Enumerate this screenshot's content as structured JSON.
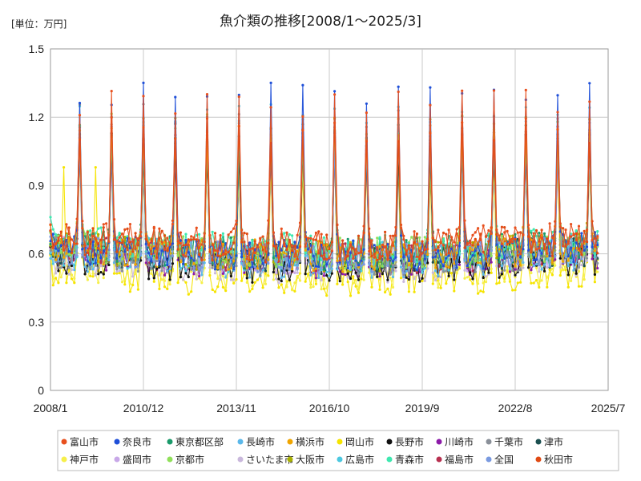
{
  "chart_data": {
    "type": "line",
    "title": "魚介類の推移[2008/1～2025/3]",
    "unit_label": "[単位：万円]",
    "xlabel": "",
    "ylabel": "",
    "ylim": [
      0,
      1.5
    ],
    "y_ticks": [
      "0",
      "0.3",
      "0.6",
      "0.9",
      "1.2",
      "1.5"
    ],
    "x_ticks": [
      "2008/1",
      "2010/12",
      "2013/11",
      "2016/10",
      "2019/9",
      "2022/8",
      "2025/7"
    ],
    "grid": true,
    "legend_placement": "bottom",
    "x_range": [
      "2008-01",
      "2025-07"
    ],
    "series": [
      {
        "name": "富山市",
        "color": "#e8501e",
        "base": 0.68,
        "peak": 1.26
      },
      {
        "name": "奈良市",
        "color": "#1f4fd8",
        "base": 0.63,
        "peak": 1.3
      },
      {
        "name": "東京都区部",
        "color": "#1a9a6a",
        "base": 0.64,
        "peak": 1.15
      },
      {
        "name": "長崎市",
        "color": "#5bb8ea",
        "base": 0.6,
        "peak": 1.13
      },
      {
        "name": "横浜市",
        "color": "#f0a500",
        "base": 0.63,
        "peak": 1.14
      },
      {
        "name": "岡山市",
        "color": "#f5e400",
        "base": 0.52,
        "peak": 1.02
      },
      {
        "name": "長野市",
        "color": "#111111",
        "base": 0.58,
        "peak": 1.08
      },
      {
        "name": "川崎市",
        "color": "#8c1aa8",
        "base": 0.6,
        "peak": 1.07
      },
      {
        "name": "千葉市",
        "color": "#8a9099",
        "base": 0.61,
        "peak": 1.2
      },
      {
        "name": "津市",
        "color": "#1b4f50",
        "base": 0.62,
        "peak": 1.08
      },
      {
        "name": "神戸市",
        "color": "#f6ef4a",
        "base": 0.55,
        "peak": 1.05
      },
      {
        "name": "盛岡市",
        "color": "#c8a8e8",
        "base": 0.62,
        "peak": 1.05
      },
      {
        "name": "京都市",
        "color": "#90e05a",
        "base": 0.64,
        "peak": 1.17
      },
      {
        "name": "さいたま市",
        "color": "#c9b8dc",
        "base": 0.58,
        "peak": 1.08
      },
      {
        "name": "大阪市",
        "color": "#a8b000",
        "base": 0.63,
        "peak": 1.15
      },
      {
        "name": "広島市",
        "color": "#4cc8e0",
        "base": 0.62,
        "peak": 1.22
      },
      {
        "name": "青森市",
        "color": "#3ee8b0",
        "base": 0.66,
        "peak": 1.12
      },
      {
        "name": "福島市",
        "color": "#b83050",
        "base": 0.62,
        "peak": 1.1
      },
      {
        "name": "全国",
        "color": "#7a9ae0",
        "base": 0.62,
        "peak": 1.12
      },
      {
        "name": "秋田市",
        "color": "#e04a14",
        "base": 0.67,
        "peak": 1.14
      }
    ]
  }
}
